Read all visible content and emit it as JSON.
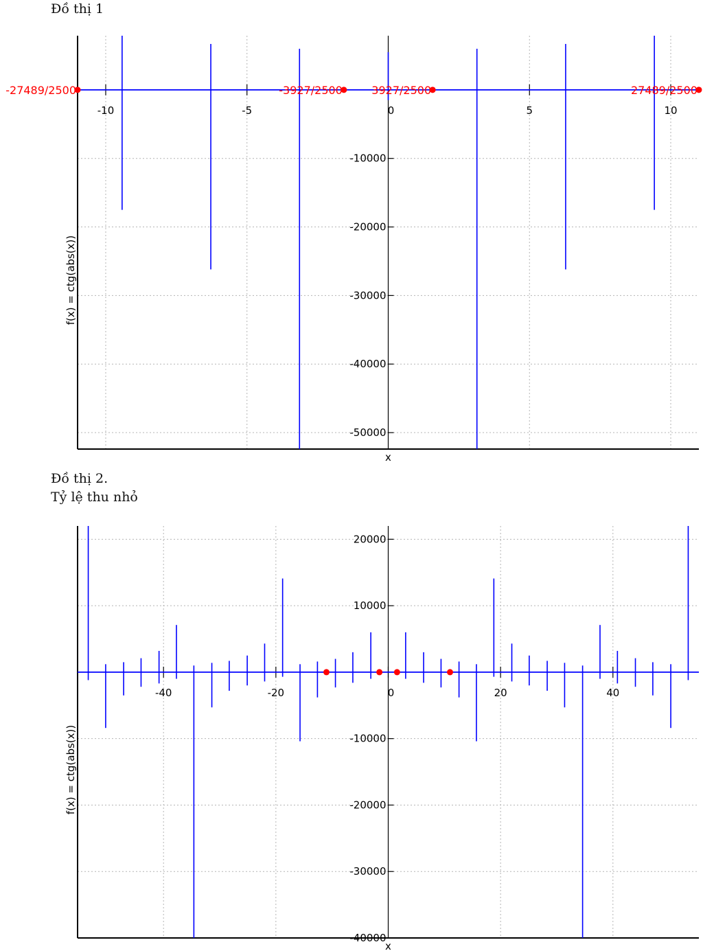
{
  "captions": [
    {
      "lines": [
        "Đồ thị 1"
      ]
    },
    {
      "lines": [
        "Đồ thị 2.",
        "Tỷ lệ thu nhỏ"
      ]
    }
  ],
  "colors": {
    "curve": "#0000ff",
    "points": "#ff0000",
    "grid": "#b4b4b4",
    "axis": "#000000"
  },
  "chart_data": [
    {
      "type": "line",
      "title": "Đồ thị 1",
      "xlabel": "x",
      "ylabel": "f(x) = ctg(abs(x))",
      "xlim": [
        -10.996,
        10.996
      ],
      "ylim": [
        -52400,
        7900
      ],
      "xticks": [
        -10,
        -5,
        0,
        5,
        10
      ],
      "yticks": [
        -10000,
        -20000,
        -30000,
        -40000,
        -50000
      ],
      "grid": true,
      "series": [
        {
          "x_asymptotes": [
            -9.42,
            -6.28,
            -3.14,
            0,
            3.14,
            6.28,
            9.42
          ],
          "spikes": [
            {
              "x": -9.42,
              "top": 7900,
              "bottom": -17500
            },
            {
              "x": -6.28,
              "top": 6700,
              "bottom": -26200
            },
            {
              "x": -3.14,
              "top": 6000,
              "bottom": -52400
            },
            {
              "x": 0,
              "top": 5500,
              "bottom": -1500
            },
            {
              "x": 3.14,
              "top": 6000,
              "bottom": -52400
            },
            {
              "x": 6.28,
              "top": 6700,
              "bottom": -26200
            },
            {
              "x": 9.42,
              "top": 7900,
              "bottom": -17500
            }
          ]
        }
      ],
      "points": [
        {
          "x": -10.9956,
          "y": 0,
          "label": "-27489/2500"
        },
        {
          "x": -1.5708,
          "y": 0,
          "label": "-3927/2500"
        },
        {
          "x": 1.5708,
          "y": 0,
          "label": "3927/2500"
        },
        {
          "x": 10.9956,
          "y": 0,
          "label": "27489/2500"
        }
      ]
    },
    {
      "type": "line",
      "title": "Đồ thị 2. Tỷ lệ thu nhỏ",
      "xlabel": "x",
      "ylabel": "f(x) = ctg(abs(x))",
      "xlim": [
        -55.3,
        55.3
      ],
      "ylim": [
        -40000,
        22000
      ],
      "xticks": [
        -40,
        -20,
        0,
        20,
        40
      ],
      "yticks": [
        20000,
        10000,
        -10000,
        -20000,
        -30000,
        -40000
      ],
      "grid": true,
      "series": [
        {
          "spikes": [
            {
              "x": -53.4,
              "top": 22000,
              "bottom": -1200
            },
            {
              "x": -50.3,
              "top": 1200,
              "bottom": -8400
            },
            {
              "x": -47.1,
              "top": 1500,
              "bottom": -3500
            },
            {
              "x": -44.0,
              "top": 2100,
              "bottom": -2200
            },
            {
              "x": -40.8,
              "top": 3200,
              "bottom": -1700
            },
            {
              "x": -37.7,
              "top": 7100,
              "bottom": -1000
            },
            {
              "x": -34.6,
              "top": 1000,
              "bottom": -40000
            },
            {
              "x": -31.4,
              "top": 1400,
              "bottom": -5300
            },
            {
              "x": -28.3,
              "top": 1700,
              "bottom": -2800
            },
            {
              "x": -25.1,
              "top": 2500,
              "bottom": -2000
            },
            {
              "x": -22.0,
              "top": 4300,
              "bottom": -1400
            },
            {
              "x": -18.8,
              "top": 14100,
              "bottom": -700
            },
            {
              "x": -15.7,
              "top": 1200,
              "bottom": -10400
            },
            {
              "x": -12.6,
              "top": 1600,
              "bottom": -3800
            },
            {
              "x": -9.4,
              "top": 2000,
              "bottom": -2300
            },
            {
              "x": -6.3,
              "top": 3000,
              "bottom": -1600
            },
            {
              "x": -3.1,
              "top": 6000,
              "bottom": -1000
            },
            {
              "x": 3.1,
              "top": 6000,
              "bottom": -1000
            },
            {
              "x": 6.3,
              "top": 3000,
              "bottom": -1600
            },
            {
              "x": 9.4,
              "top": 2000,
              "bottom": -2300
            },
            {
              "x": 12.6,
              "top": 1600,
              "bottom": -3800
            },
            {
              "x": 15.7,
              "top": 1200,
              "bottom": -10400
            },
            {
              "x": 18.8,
              "top": 14100,
              "bottom": -700
            },
            {
              "x": 22.0,
              "top": 4300,
              "bottom": -1400
            },
            {
              "x": 25.1,
              "top": 2500,
              "bottom": -2000
            },
            {
              "x": 28.3,
              "top": 1700,
              "bottom": -2800
            },
            {
              "x": 31.4,
              "top": 1400,
              "bottom": -5300
            },
            {
              "x": 34.6,
              "top": 1000,
              "bottom": -40000
            },
            {
              "x": 37.7,
              "top": 7100,
              "bottom": -1000
            },
            {
              "x": 40.8,
              "top": 3200,
              "bottom": -1700
            },
            {
              "x": 44.0,
              "top": 2100,
              "bottom": -2200
            },
            {
              "x": 47.1,
              "top": 1500,
              "bottom": -3500
            },
            {
              "x": 50.3,
              "top": 1200,
              "bottom": -8400
            },
            {
              "x": 53.4,
              "top": 22000,
              "bottom": -1200
            }
          ]
        }
      ],
      "points": [
        {
          "x": -11.0,
          "y": 0,
          "label": ""
        },
        {
          "x": -1.57,
          "y": 0,
          "label": ""
        },
        {
          "x": 1.57,
          "y": 0,
          "label": ""
        },
        {
          "x": 11.0,
          "y": 0,
          "label": ""
        }
      ]
    }
  ]
}
